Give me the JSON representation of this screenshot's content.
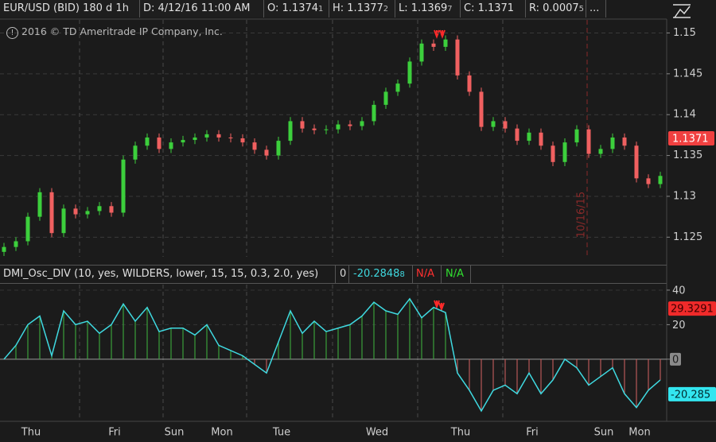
{
  "header": {
    "symbol": "EUR/USD (BID) 180 d 1h",
    "date": "D: 4/12/16 11:00 AM",
    "fields": [
      {
        "text": "O: 1.1374",
        "tail": "1"
      },
      {
        "text": "H: 1.1377",
        "tail": "2"
      },
      {
        "text": "L: 1.1369",
        "tail": "7"
      },
      {
        "text": "C: 1.1371"
      },
      {
        "text": "R: 0.0007",
        "tail": "5"
      }
    ],
    "more": "..."
  },
  "copyright": "2016 © TD Ameritrade IP Company, Inc.",
  "chart_data": [
    {
      "type": "candlestick",
      "categories": [
        null,
        null,
        "Thu",
        null,
        null,
        null,
        null,
        null,
        null,
        "Fri",
        null,
        null,
        null,
        null,
        "Sun",
        null,
        null,
        null,
        "Mon",
        null,
        null,
        null,
        null,
        "Tue",
        null,
        null,
        null,
        null,
        null,
        null,
        null,
        "Wed",
        null,
        null,
        null,
        null,
        null,
        null,
        "Thu",
        null,
        null,
        null,
        null,
        null,
        "Fri",
        null,
        null,
        null,
        null,
        null,
        "Sun",
        null,
        null,
        "Mon",
        null,
        null
      ],
      "open": [
        1.1232,
        1.1238,
        1.1245,
        1.1275,
        1.1305,
        1.1255,
        1.1285,
        1.1278,
        1.1282,
        1.1288,
        1.128,
        1.1345,
        1.1362,
        1.1372,
        1.1358,
        1.1366,
        1.1369,
        1.1372,
        1.1376,
        1.1372,
        1.1371,
        1.1366,
        1.1357,
        1.135,
        1.1368,
        1.1392,
        1.1383,
        1.1381,
        1.1382,
        1.1388,
        1.1386,
        1.1392,
        1.1412,
        1.1428,
        1.1438,
        1.1465,
        1.1487,
        1.1483,
        1.1492,
        1.1448,
        1.1428,
        1.1385,
        1.1392,
        1.1383,
        1.1368,
        1.1378,
        1.1362,
        1.1342,
        1.1366,
        1.1382,
        1.1352,
        1.1358,
        1.1372,
        1.1362,
        1.1322,
        1.1315
      ],
      "high": [
        1.1243,
        1.125,
        1.128,
        1.131,
        1.131,
        1.129,
        1.129,
        1.1287,
        1.1293,
        1.1293,
        1.135,
        1.1367,
        1.1377,
        1.1377,
        1.1371,
        1.1374,
        1.1377,
        1.1381,
        1.1381,
        1.1377,
        1.1376,
        1.1371,
        1.1362,
        1.1373,
        1.1397,
        1.1397,
        1.1388,
        1.1387,
        1.1393,
        1.1393,
        1.1397,
        1.1417,
        1.1433,
        1.1443,
        1.147,
        1.1492,
        1.1492,
        1.1497,
        1.1497,
        1.1453,
        1.1433,
        1.1397,
        1.1397,
        1.1388,
        1.1383,
        1.1383,
        1.1367,
        1.1371,
        1.1387,
        1.1387,
        1.1363,
        1.1377,
        1.1377,
        1.1367,
        1.1327,
        1.133
      ],
      "low": [
        1.1227,
        1.1233,
        1.124,
        1.127,
        1.125,
        1.125,
        1.1273,
        1.1273,
        1.1277,
        1.1275,
        1.1275,
        1.134,
        1.1357,
        1.1353,
        1.1353,
        1.1361,
        1.1364,
        1.1367,
        1.1367,
        1.1366,
        1.1361,
        1.1352,
        1.1345,
        1.1345,
        1.1363,
        1.1378,
        1.1376,
        1.1376,
        1.1377,
        1.1381,
        1.1381,
        1.1387,
        1.1407,
        1.1423,
        1.1433,
        1.146,
        1.1478,
        1.1478,
        1.1443,
        1.1423,
        1.138,
        1.138,
        1.1378,
        1.1363,
        1.1363,
        1.1357,
        1.1337,
        1.1337,
        1.1361,
        1.1347,
        1.1347,
        1.1353,
        1.1357,
        1.1317,
        1.131,
        1.131
      ],
      "close": [
        1.1238,
        1.1245,
        1.1275,
        1.1305,
        1.1255,
        1.1285,
        1.1278,
        1.1282,
        1.1288,
        1.128,
        1.1345,
        1.1362,
        1.1372,
        1.1358,
        1.1366,
        1.1369,
        1.1372,
        1.1376,
        1.1372,
        1.1371,
        1.1366,
        1.1357,
        1.135,
        1.1368,
        1.1392,
        1.1383,
        1.1381,
        1.1382,
        1.1388,
        1.1386,
        1.1392,
        1.1412,
        1.1428,
        1.1438,
        1.1465,
        1.1487,
        1.1483,
        1.1492,
        1.1448,
        1.1428,
        1.1385,
        1.1392,
        1.1383,
        1.1368,
        1.1378,
        1.1362,
        1.1342,
        1.1366,
        1.1382,
        1.1352,
        1.1358,
        1.1372,
        1.1362,
        1.1322,
        1.1315,
        1.1325
      ],
      "up_color": "#3ccf3c",
      "down_color": "#f06060",
      "ylim": [
        1.1226,
        1.1516
      ],
      "yticks": [
        1.125,
        1.13,
        1.135,
        1.14,
        1.145,
        1.15
      ],
      "grid": true,
      "last_price": 1.1371,
      "last_price_color": "#f04040",
      "marker_date": "10/16/15"
    },
    {
      "type": "oscillator",
      "title": "DMI_Osc_DIV (10, yes, WILDERS, lower, 15, 15, 0.3, 2.0, yes)",
      "status": [
        {
          "text": "0",
          "color": "#e0e0e0"
        },
        {
          "text": "-20.2848",
          "tail": "8",
          "color": "#3fd9e0"
        },
        {
          "text": "N/A",
          "color": "#ff3030"
        },
        {
          "text": "N/A",
          "color": "#30e030"
        }
      ],
      "values": [
        0,
        8,
        20,
        25,
        2,
        28,
        20,
        22,
        15,
        20,
        32,
        22,
        30,
        16,
        18,
        18,
        14,
        20,
        8,
        5,
        2,
        -3,
        -8,
        10,
        28,
        15,
        22,
        16,
        18,
        20,
        25,
        33,
        28,
        26,
        35,
        24,
        30,
        27,
        -8,
        -18,
        -30,
        -18,
        -15,
        -20,
        -8,
        -20,
        -12,
        0,
        -5,
        -15,
        -10,
        -5,
        -20,
        -28,
        -18,
        -12
      ],
      "line_color": "#3fd9e0",
      "positive_color": "#3aa03a",
      "negative_color": "#b85858",
      "ylim": [
        -34.6,
        43.2
      ],
      "yticks": [
        40,
        20,
        0
      ],
      "grid": true,
      "badges": [
        {
          "value": 29.3291,
          "color": "#f02a2a",
          "text_color": "#3a0000"
        },
        {
          "value": -20.285,
          "color": "#33e6f0",
          "text_color": "#002a2e"
        }
      ]
    }
  ]
}
